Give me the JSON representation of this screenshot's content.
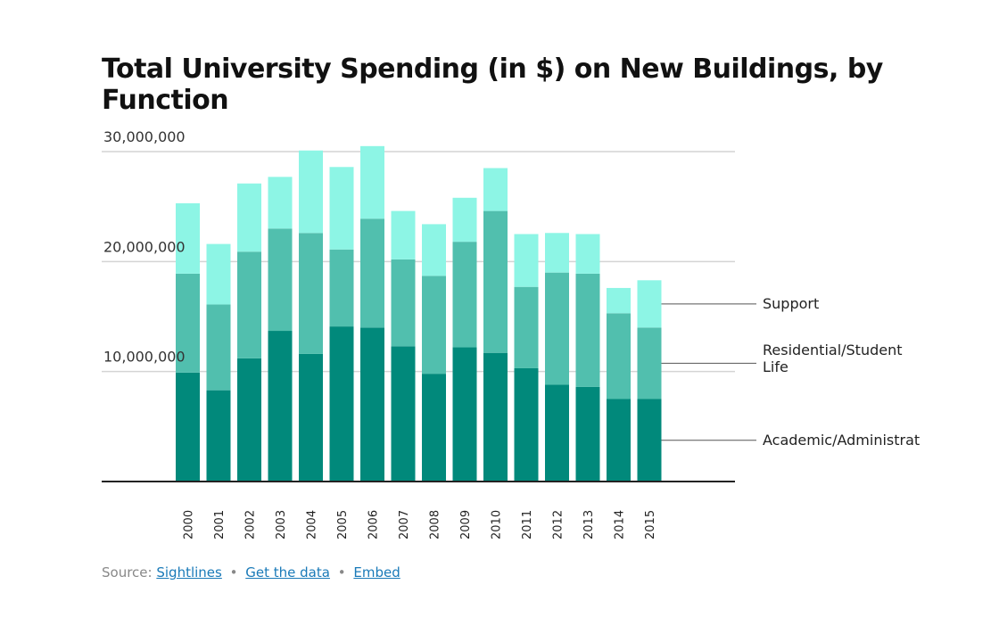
{
  "chart_data": {
    "type": "bar",
    "stacked": true,
    "title": "Total University Spending (in $) on New Buildings, by Function",
    "xlabel": "",
    "ylabel": "",
    "categories": [
      "2000",
      "2001",
      "2002",
      "2003",
      "2004",
      "2005",
      "2006",
      "2007",
      "2008",
      "2009",
      "2010",
      "2011",
      "2012",
      "2013",
      "2014",
      "2015"
    ],
    "y_ticks": [
      10000000,
      20000000,
      30000000
    ],
    "y_tick_labels": [
      "10,000,000",
      "20,000,000",
      "30,000,000"
    ],
    "ylim": [
      0,
      31500000
    ],
    "grid": true,
    "legend_position": "right, inline beside last bar",
    "series": [
      {
        "name": "Academic/Administrative",
        "label": "Academic/Administrat",
        "color": "#01897b",
        "values": [
          9900000,
          8300000,
          11200000,
          13700000,
          11600000,
          14100000,
          14000000,
          12300000,
          9800000,
          12200000,
          11700000,
          10300000,
          8800000,
          8600000,
          7500000,
          7500000
        ]
      },
      {
        "name": "Residential/Student Life",
        "label_lines": [
          "Residential/Student",
          "Life"
        ],
        "color": "#51bfae",
        "values": [
          9000000,
          7800000,
          9700000,
          9300000,
          11000000,
          7000000,
          9900000,
          7900000,
          8900000,
          9600000,
          12900000,
          7400000,
          10200000,
          10300000,
          7800000,
          6500000
        ]
      },
      {
        "name": "Support",
        "label": "Support",
        "color": "#8df5e5",
        "values": [
          6400000,
          5500000,
          6200000,
          4700000,
          7500000,
          7500000,
          6600000,
          4400000,
          4700000,
          4000000,
          3900000,
          4800000,
          3600000,
          3600000,
          2300000,
          4300000
        ]
      }
    ]
  },
  "source": {
    "prefix": "Source:",
    "links": [
      "Sightlines",
      "Get the data",
      "Embed"
    ],
    "separator": "•"
  }
}
